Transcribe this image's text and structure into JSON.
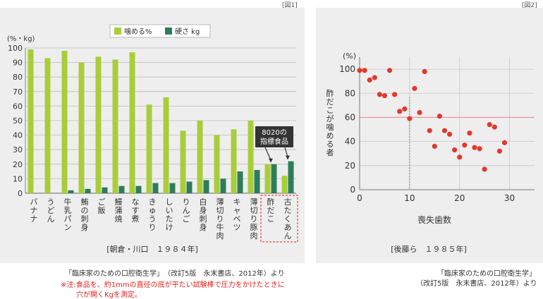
{
  "figures": {
    "fig1_label": "[図1]",
    "fig2_label": "[図2]"
  },
  "chart_data": [
    {
      "type": "bar",
      "unit_label": "(%・kg)",
      "ylim": [
        0,
        100
      ],
      "yticks": [
        0,
        10,
        20,
        30,
        40,
        50,
        60,
        70,
        80,
        90,
        100
      ],
      "categories": [
        "バナナ",
        "うどん",
        "牛乳パン",
        "鮪の刺身",
        "ご飯",
        "鰻蒲焼",
        "なす煮",
        "きゅうり",
        "しいたけ",
        "りんご",
        "白身刺身",
        "薄切り牛肉",
        "キャベツ",
        "薄切り豚肉",
        "酢だこ",
        "古たくあん"
      ],
      "series": [
        {
          "name": "噛める%",
          "color": "#a9cd3a",
          "values": [
            99,
            93,
            98,
            90,
            94,
            92,
            97,
            61,
            66,
            43,
            50,
            40,
            44,
            50,
            20,
            12
          ]
        },
        {
          "name": "硬さ kg",
          "color": "#2e7d5a",
          "values": [
            0,
            0,
            2,
            3,
            4,
            5,
            5,
            7,
            7,
            8,
            9,
            10,
            15,
            16,
            20,
            22
          ]
        }
      ],
      "grid": true,
      "legend": "top-center",
      "annotation": "8020の\n指標食品",
      "highlight_categories": [
        "酢だこ",
        "古たくあん"
      ],
      "caption": "[朝倉・川口　１９８４年]"
    },
    {
      "type": "scatter",
      "unit_label": "(%)",
      "xlabel": "喪失歯数",
      "ylabel": "酢だこが噛める者",
      "xlim": [
        0,
        35
      ],
      "ylim": [
        0,
        110
      ],
      "xticks": [
        0,
        10,
        20,
        30
      ],
      "yticks": [
        0,
        20,
        40,
        60,
        80,
        100
      ],
      "reference_line_y": 60,
      "reference_line_x": 10,
      "points": [
        [
          0,
          99
        ],
        [
          1,
          99
        ],
        [
          2,
          91
        ],
        [
          3,
          93
        ],
        [
          4,
          79
        ],
        [
          5,
          78
        ],
        [
          6,
          99
        ],
        [
          7,
          79
        ],
        [
          8,
          65
        ],
        [
          9,
          67
        ],
        [
          10,
          59
        ],
        [
          11,
          84
        ],
        [
          12,
          64
        ],
        [
          13,
          98
        ],
        [
          14,
          49
        ],
        [
          15,
          36
        ],
        [
          16,
          61
        ],
        [
          17,
          49
        ],
        [
          18,
          46
        ],
        [
          19,
          33
        ],
        [
          20,
          27
        ],
        [
          21,
          37
        ],
        [
          22,
          47
        ],
        [
          23,
          35
        ],
        [
          24,
          34
        ],
        [
          25,
          17
        ],
        [
          26,
          54
        ],
        [
          27,
          52
        ],
        [
          28,
          32
        ],
        [
          29,
          39
        ]
      ],
      "grid": true,
      "caption": "[後藤ら　１９８５年]"
    }
  ],
  "source1": "「臨床家のための口腔衛生学」　（改訂5版　永末書店、2012年）より",
  "note_line1": "※注:食品を、約1mmの直径の底が平たい試験棒で圧力をかけたときに",
  "note_line2": "穴が開くKgを測定。",
  "source2_line1": "「臨床家のための口腔衛生学」",
  "source2_line2": "（改訂5版　永末書店、2012年）より"
}
